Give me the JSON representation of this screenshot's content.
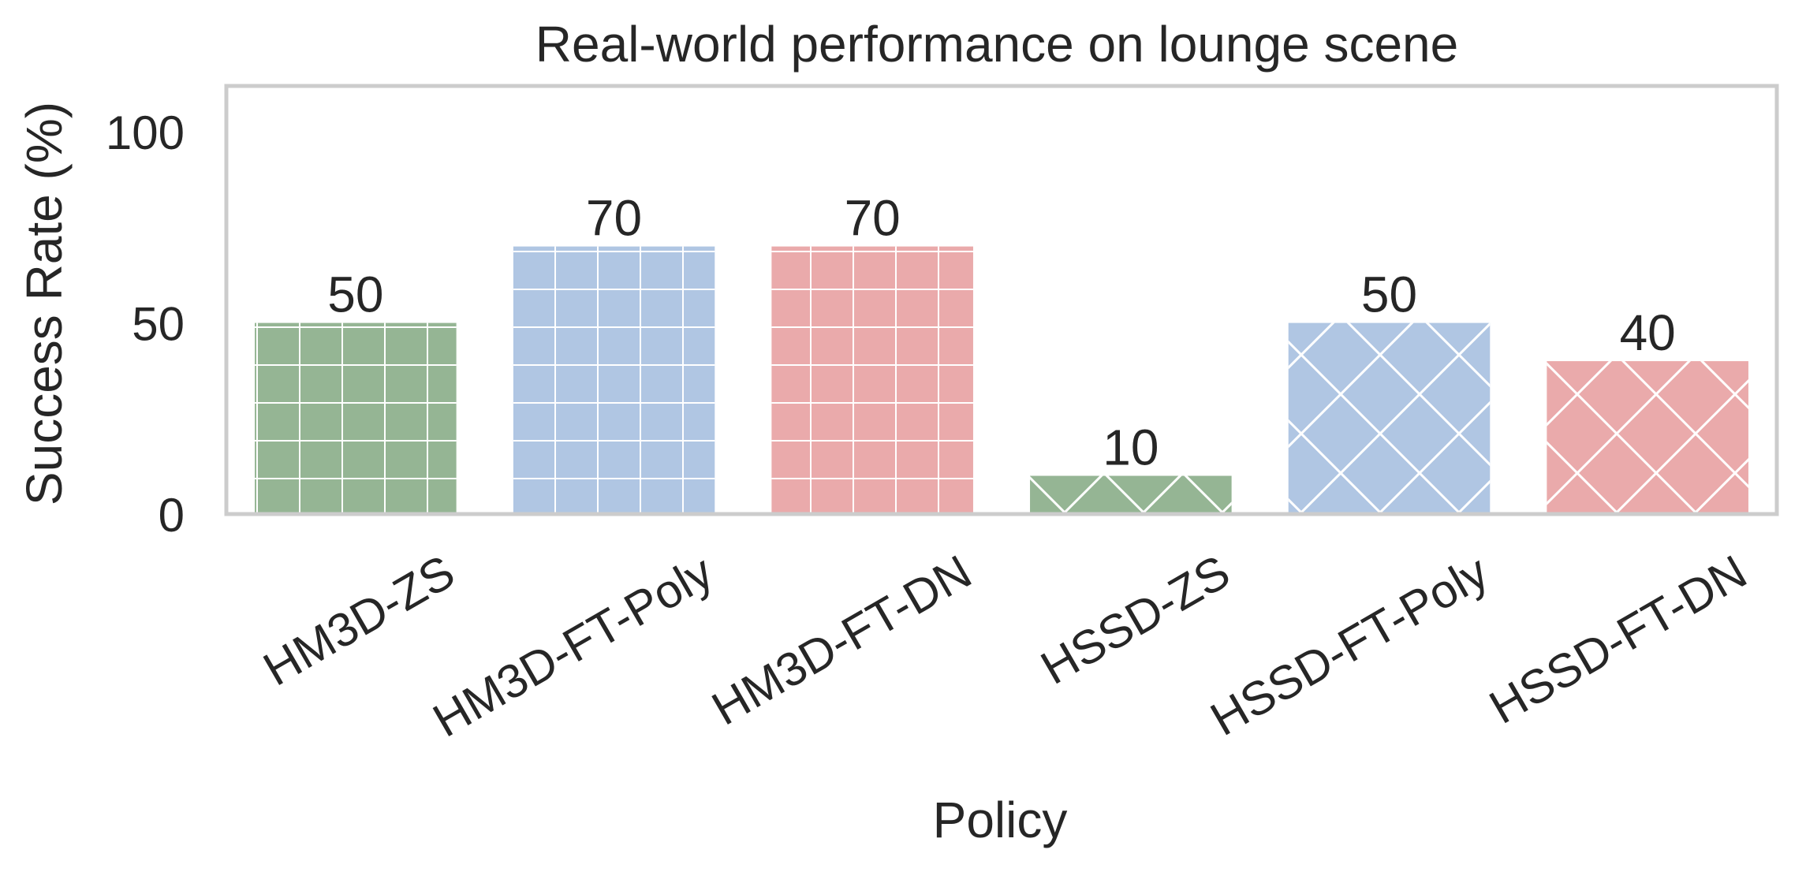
{
  "chart_data": {
    "type": "bar",
    "title": "Real-world performance on lounge scene",
    "xlabel": "Policy",
    "ylabel": "Success Rate (%)",
    "ylim": [
      0,
      112
    ],
    "yticks": [
      0,
      50,
      100
    ],
    "categories": [
      "HM3D-ZS",
      "HM3D-FT-Poly",
      "HM3D-FT-DN",
      "HSSD-ZS",
      "HSSD-FT-Poly",
      "HSSD-FT-DN"
    ],
    "values": [
      50,
      70,
      70,
      10,
      50,
      40
    ],
    "value_labels": [
      "50",
      "70",
      "70",
      "10",
      "50",
      "40"
    ],
    "bar_colors": [
      "#95b594",
      "#b0c6e3",
      "#eaaaab",
      "#95b594",
      "#b0c6e3",
      "#eaaaab"
    ],
    "hatches": [
      "grid",
      "grid",
      "grid",
      "diamond",
      "diamond",
      "diamond"
    ],
    "grid": false,
    "legend": "none",
    "frame_color": "#cccccc",
    "hatch_color": "#ffffff"
  }
}
